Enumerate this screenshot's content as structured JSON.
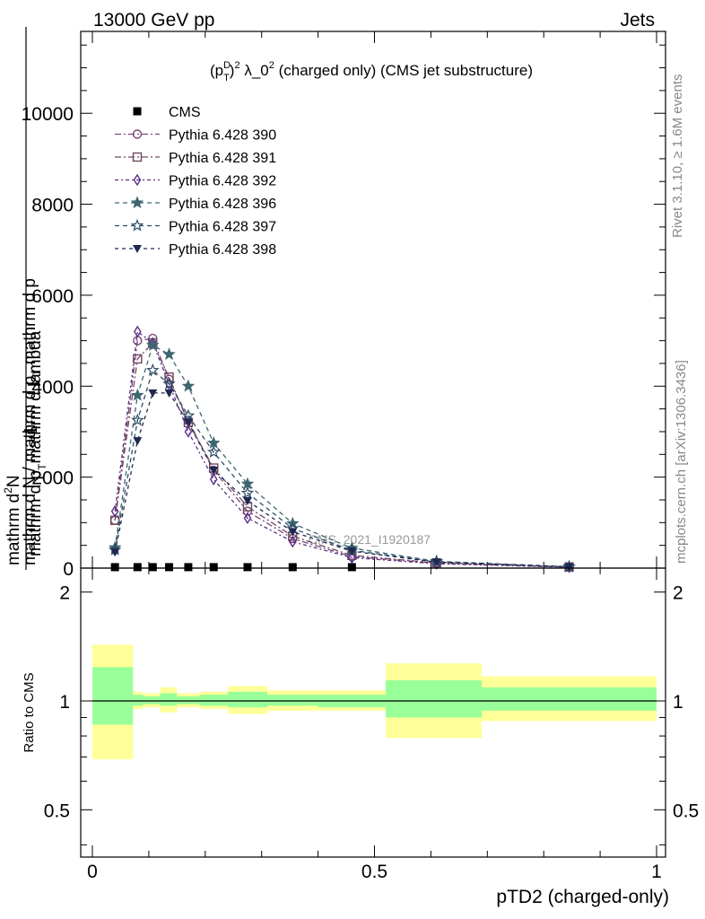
{
  "header": {
    "left": "13000 GeV pp",
    "right": "Jets"
  },
  "side_labels": {
    "rivet": "Rivet 3.1.10, ≥ 1.6M events",
    "mcplots": "mcplots.cern.ch [arXiv:1306.3436]"
  },
  "watermark": "CMS_2021_I1920187",
  "colors": {
    "cms": "#000000",
    "p390": "#7a4a7a",
    "p391": "#6e4a5e",
    "p392": "#5a2e86",
    "p396": "#3e6670",
    "p397": "#2e4e66",
    "p398": "#1e2850",
    "band_inner": "#99ff99",
    "band_outer": "#ffff99"
  },
  "chart_data": [
    {
      "type": "line",
      "title": "(p_T^D)^2 λ_0^2 (charged only) (CMS jet substructure)",
      "title_parts": {
        "p": "(p",
        "sup_D": "D",
        "sub_T": "T",
        "close": ")",
        "sup_2": "2",
        "mid": " λ_0",
        "sup_2b": "2",
        "tail": " (charged only) (CMS jet substructure)"
      },
      "xlabel": "pTD2 (charged-only)",
      "ylabel": "1 / mathrm d N / mathrm d p_T mathrm d lambda",
      "ylabel_parts": {
        "num": "1",
        "den": "mathrm d N / mathrm d p",
        "den_sub": "T",
        "den_tail": " mathrm d p",
        "num2": "mathrm d",
        "num2_sup": "2",
        "num2_tail": "N",
        "den2": "mathrm d p",
        "den2_sub": "T",
        "den2_tail": "mathrm d lambda"
      },
      "xlim": [
        0,
        1
      ],
      "ylim": [
        0,
        11800
      ],
      "yticks": [
        0,
        2000,
        4000,
        6000,
        8000,
        10000
      ],
      "ytick_labels": [
        "0",
        "2000",
        "4000",
        "6000",
        "8000",
        "10000"
      ],
      "xticks": [
        0,
        0.5,
        1
      ],
      "xtick_labels": [
        "0",
        "0.5",
        "1"
      ],
      "legend_position": "top-left",
      "cms_points": {
        "name": "CMS",
        "x": [
          0.04,
          0.08,
          0.107,
          0.136,
          0.17,
          0.215,
          0.275,
          0.355,
          0.46
        ],
        "y": [
          1,
          1,
          1,
          1,
          1,
          1,
          1,
          1,
          1
        ]
      },
      "x_mc": [
        0.04,
        0.08,
        0.107,
        0.136,
        0.17,
        0.215,
        0.275,
        0.355,
        0.46,
        0.61,
        0.845
      ],
      "series": [
        {
          "name": "Pythia 6.428 390",
          "marker": "circle",
          "color_key": "p390",
          "dash": "7,3,2,3",
          "values": [
            1050,
            5000,
            5050,
            4150,
            3250,
            2150,
            1250,
            650,
            250,
            110,
            22
          ]
        },
        {
          "name": "Pythia 6.428 391",
          "marker": "square",
          "color_key": "p391",
          "dash": "7,3,2,3",
          "values": [
            1050,
            4600,
            4950,
            4200,
            3200,
            2200,
            1350,
            700,
            280,
            115,
            25
          ]
        },
        {
          "name": "Pythia 6.428 392",
          "marker": "diamond",
          "color_key": "p392",
          "dash": "4,3,2,3",
          "values": [
            1250,
            5200,
            4950,
            4050,
            3000,
            1950,
            1100,
            580,
            230,
            95,
            20
          ]
        },
        {
          "name": "Pythia 6.428 396",
          "marker": "star",
          "color_key": "p396",
          "dash": "5,4",
          "values": [
            450,
            3800,
            4900,
            4700,
            4000,
            2750,
            1850,
            980,
            440,
            150,
            30
          ]
        },
        {
          "name": "Pythia 6.428 397",
          "marker": "star-open",
          "color_key": "p397",
          "dash": "5,4",
          "values": [
            400,
            3250,
            4350,
            4050,
            3350,
            2550,
            1650,
            870,
            390,
            140,
            28
          ]
        },
        {
          "name": "Pythia 6.428 398",
          "marker": "triangle-down",
          "color_key": "p398",
          "dash": "4,4",
          "values": [
            350,
            2800,
            3850,
            3850,
            3200,
            2150,
            1480,
            800,
            370,
            130,
            27
          ]
        }
      ]
    },
    {
      "type": "area",
      "ylabel": "Ratio to CMS",
      "xlim": [
        0,
        1
      ],
      "ylim": [
        0.37,
        2.33
      ],
      "yticks": [
        0.5,
        1,
        2
      ],
      "ytick_labels": [
        "0.5",
        "1",
        "2"
      ],
      "xticks": [
        0,
        0.5,
        1
      ],
      "xtick_labels": [
        "0",
        "0.5",
        "1"
      ],
      "reference": 1,
      "bins": [
        {
          "x": [
            0.0,
            0.072
          ],
          "inner": [
            0.86,
            1.24
          ],
          "outer": [
            0.69,
            1.43
          ]
        },
        {
          "x": [
            0.072,
            0.09
          ],
          "inner": [
            0.97,
            1.04
          ],
          "outer": [
            0.95,
            1.06
          ]
        },
        {
          "x": [
            0.09,
            0.12
          ],
          "inner": [
            0.98,
            1.03
          ],
          "outer": [
            0.96,
            1.05
          ]
        },
        {
          "x": [
            0.12,
            0.15
          ],
          "inner": [
            0.97,
            1.05
          ],
          "outer": [
            0.93,
            1.09
          ]
        },
        {
          "x": [
            0.15,
            0.19
          ],
          "inner": [
            0.98,
            1.03
          ],
          "outer": [
            0.96,
            1.05
          ]
        },
        {
          "x": [
            0.19,
            0.24
          ],
          "inner": [
            0.97,
            1.04
          ],
          "outer": [
            0.95,
            1.06
          ]
        },
        {
          "x": [
            0.24,
            0.31
          ],
          "inner": [
            0.96,
            1.06
          ],
          "outer": [
            0.92,
            1.1
          ]
        },
        {
          "x": [
            0.31,
            0.4
          ],
          "inner": [
            0.97,
            1.04
          ],
          "outer": [
            0.94,
            1.07
          ]
        },
        {
          "x": [
            0.4,
            0.52
          ],
          "inner": [
            0.96,
            1.04
          ],
          "outer": [
            0.94,
            1.07
          ]
        },
        {
          "x": [
            0.52,
            0.69
          ],
          "inner": [
            0.9,
            1.14
          ],
          "outer": [
            0.79,
            1.27
          ]
        },
        {
          "x": [
            0.69,
            1.0
          ],
          "inner": [
            0.94,
            1.09
          ],
          "outer": [
            0.88,
            1.17
          ]
        }
      ]
    }
  ]
}
